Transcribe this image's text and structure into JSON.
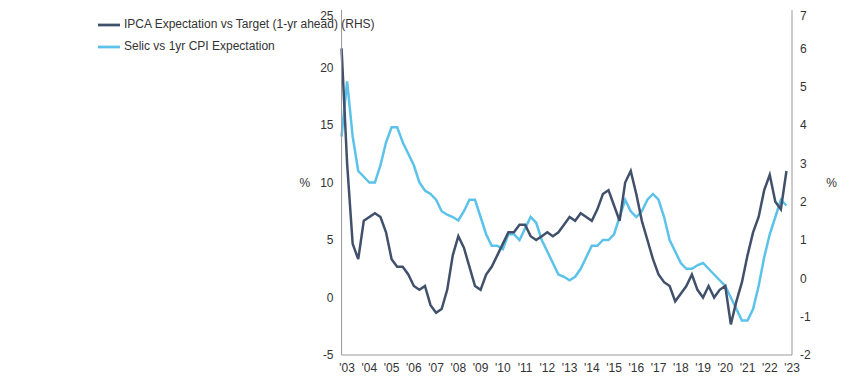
{
  "chart_data": {
    "type": "line",
    "ylabel": "%",
    "y2label": "%",
    "legend": "upper left",
    "grid": false,
    "categories": [
      null,
      "'03",
      null,
      null,
      null,
      "'04",
      null,
      null,
      null,
      "'05",
      null,
      null,
      null,
      "'06",
      null,
      null,
      null,
      "'07",
      null,
      null,
      null,
      "'08",
      null,
      null,
      null,
      "'09",
      null,
      null,
      null,
      "'10",
      null,
      null,
      null,
      "'11",
      null,
      null,
      null,
      "'12",
      null,
      null,
      null,
      "'13",
      null,
      null,
      null,
      "'14",
      null,
      null,
      null,
      "'15",
      null,
      null,
      null,
      "'16",
      null,
      null,
      null,
      "'17",
      null,
      null,
      null,
      "'18",
      null,
      null,
      null,
      "'19",
      null,
      null,
      null,
      "'20",
      null,
      null,
      null,
      "'21",
      null,
      null,
      null,
      "'22",
      null,
      null,
      null,
      "'23"
    ],
    "ylim": [
      -5,
      25
    ],
    "yticks": [
      -5,
      0,
      5,
      10,
      15,
      20,
      25
    ],
    "y2lim": [
      -2,
      7
    ],
    "y2ticks": [
      -2,
      -1,
      0,
      1,
      2,
      3,
      4,
      5,
      6,
      7
    ],
    "series": [
      {
        "name": "Selic vs 1yr CPI Expectation",
        "color": "#5bc2ea",
        "axis": "y",
        "values": [
          14,
          18.8,
          14,
          11,
          10.5,
          10,
          10,
          11.5,
          13.5,
          14.8,
          14.8,
          13.5,
          12.5,
          11.5,
          10,
          9.3,
          9,
          8.5,
          7.5,
          7.2,
          7,
          6.7,
          7.5,
          8.5,
          8.5,
          7,
          5.5,
          4.5,
          4.5,
          4.2,
          5.5,
          5.5,
          5,
          6,
          7,
          6.5,
          5,
          4,
          3,
          2,
          1.8,
          1.5,
          1.8,
          2.5,
          3.5,
          4.5,
          4.5,
          5,
          5,
          5.5,
          7,
          8.5,
          7.5,
          7,
          7.5,
          8.5,
          9,
          8.5,
          7,
          5,
          4,
          3,
          2.5,
          2.5,
          2.8,
          3,
          2.5,
          2,
          1.5,
          1,
          0,
          -1,
          -2,
          -2,
          -1,
          1,
          3.5,
          5.5,
          7,
          8.5,
          8,
          null
        ]
      },
      {
        "name": "IPCA Expectation vs Target (1-yr ahead) (RHS)",
        "color": "#41506b",
        "axis": "y2",
        "values": [
          6.0,
          3,
          0.9,
          0.5,
          1.5,
          1.6,
          1.7,
          1.6,
          1.2,
          0.5,
          0.3,
          0.3,
          0.1,
          -0.2,
          -0.3,
          -0.2,
          -0.7,
          -0.9,
          -0.8,
          -0.3,
          0.6,
          1.1,
          0.8,
          0.3,
          -0.2,
          -0.3,
          0.1,
          0.3,
          0.6,
          0.9,
          1.2,
          1.2,
          1.4,
          1.4,
          1.1,
          1.0,
          1.1,
          1.2,
          1.1,
          1.2,
          1.4,
          1.6,
          1.5,
          1.7,
          1.6,
          1.5,
          1.8,
          2.2,
          2.3,
          1.9,
          1.5,
          2.5,
          2.8,
          2.2,
          1.5,
          1.0,
          0.5,
          0.1,
          -0.1,
          -0.2,
          -0.6,
          -0.4,
          -0.2,
          0.1,
          -0.3,
          -0.5,
          -0.2,
          -0.5,
          -0.3,
          -0.2,
          -1.2,
          -0.6,
          -0.1,
          0.6,
          1.2,
          1.6,
          2.3,
          2.7,
          2.0,
          1.8,
          2.8,
          null
        ]
      }
    ]
  }
}
